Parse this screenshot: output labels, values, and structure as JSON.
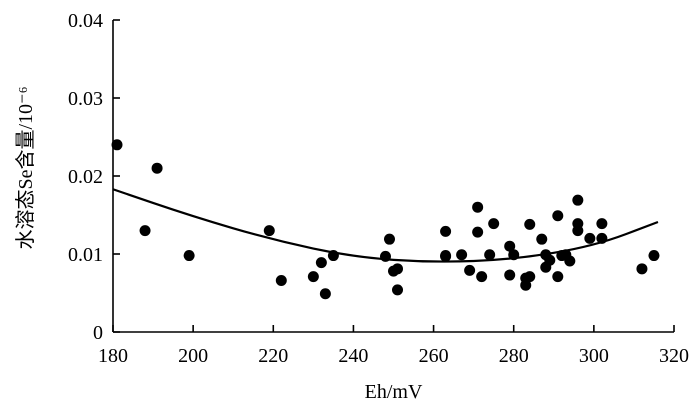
{
  "chart_data": {
    "type": "scatter",
    "xlabel": "Eh/mV",
    "ylabel": "水溶态Se含量/10⁻⁶",
    "xlim": [
      180,
      320
    ],
    "ylim": [
      0,
      0.04
    ],
    "x_ticks": [
      "180",
      "200",
      "220",
      "240",
      "260",
      "280",
      "300",
      "320"
    ],
    "y_ticks": [
      "0",
      "0.01",
      "0.02",
      "0.03",
      "0.04"
    ],
    "grid": false,
    "series": [
      {
        "points": [
          [
            181,
            0.024
          ],
          [
            188,
            0.013
          ],
          [
            191,
            0.021
          ],
          [
            199,
            0.0098
          ],
          [
            219,
            0.013
          ],
          [
            222,
            0.0066
          ],
          [
            230,
            0.0071
          ],
          [
            232,
            0.0089
          ],
          [
            233,
            0.0049
          ],
          [
            235,
            0.0098
          ],
          [
            248,
            0.0097
          ],
          [
            249,
            0.0119
          ],
          [
            250,
            0.0078
          ],
          [
            251,
            0.0081
          ],
          [
            251,
            0.0054
          ],
          [
            263,
            0.0097
          ],
          [
            263,
            0.0129
          ],
          [
            263,
            0.0098
          ],
          [
            267,
            0.0099
          ],
          [
            269,
            0.0079
          ],
          [
            271,
            0.016
          ],
          [
            271,
            0.0128
          ],
          [
            272,
            0.0071
          ],
          [
            274,
            0.0099
          ],
          [
            275,
            0.0139
          ],
          [
            279,
            0.011
          ],
          [
            279,
            0.0073
          ],
          [
            280,
            0.0099
          ],
          [
            283,
            0.0069
          ],
          [
            283,
            0.006
          ],
          [
            284,
            0.0071
          ],
          [
            284,
            0.0138
          ],
          [
            287,
            0.0119
          ],
          [
            288,
            0.0099
          ],
          [
            288,
            0.0083
          ],
          [
            289,
            0.0092
          ],
          [
            291,
            0.0149
          ],
          [
            291,
            0.0071
          ],
          [
            292,
            0.0098
          ],
          [
            293,
            0.0099
          ],
          [
            294,
            0.0091
          ],
          [
            296,
            0.0169
          ],
          [
            296,
            0.0139
          ],
          [
            296,
            0.013
          ],
          [
            299,
            0.012
          ],
          [
            302,
            0.012
          ],
          [
            302,
            0.0139
          ],
          [
            312,
            0.0081
          ],
          [
            315,
            0.0098
          ]
        ]
      }
    ],
    "trendline": {
      "type": "quadratic",
      "x": [
        180,
        200,
        220,
        240,
        260,
        280,
        300,
        316
      ],
      "y": [
        0.0183,
        0.0148,
        0.0118,
        0.0096,
        0.0089,
        0.0093,
        0.011,
        0.0141
      ]
    }
  }
}
